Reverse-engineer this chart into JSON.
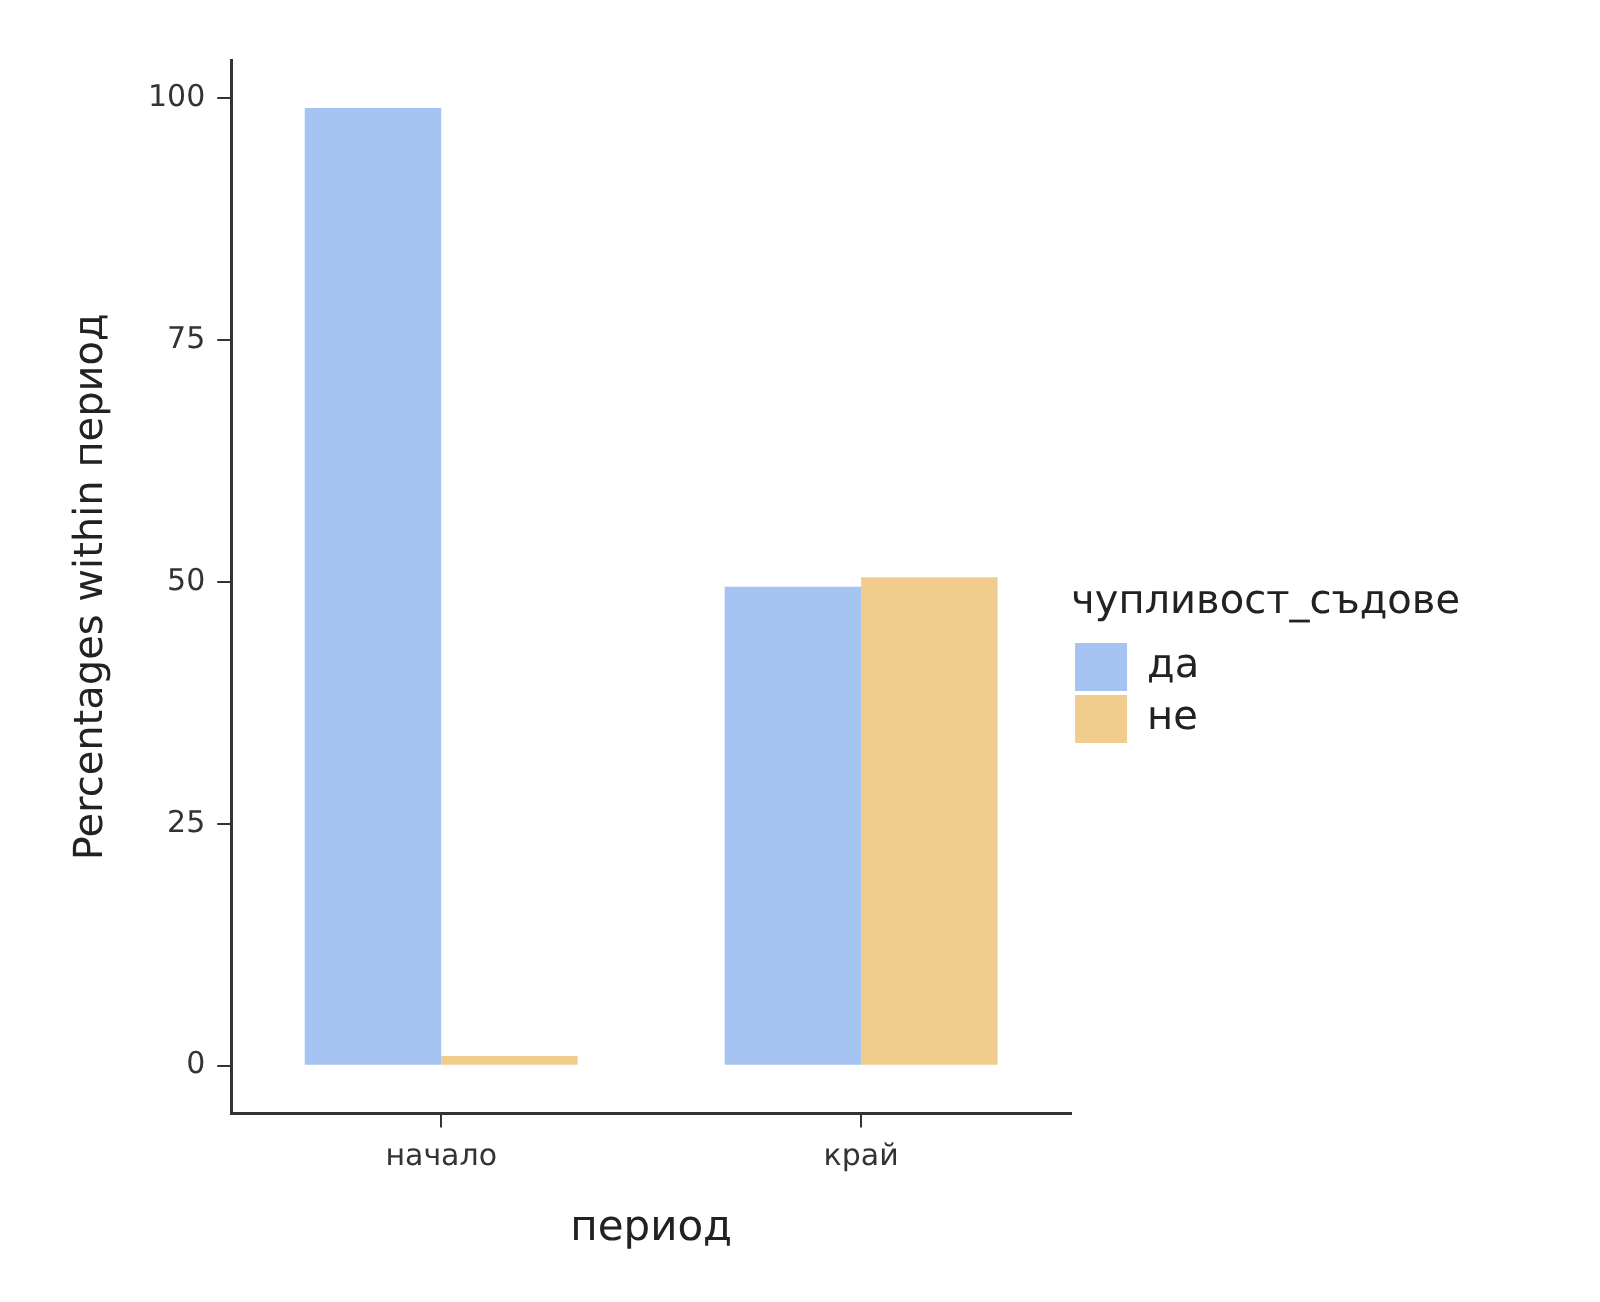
{
  "chart_data": {
    "type": "bar",
    "xlabel": "период",
    "ylabel": "Percentages within период",
    "legend_title": "чупливост_съдове",
    "categories": [
      "начало",
      "край"
    ],
    "series": [
      {
        "name": "да",
        "color": "#a6c4f2",
        "values": [
          99,
          49.5
        ]
      },
      {
        "name": "не",
        "color": "#f0cd8c",
        "values": [
          1,
          50.5
        ]
      }
    ],
    "ylim": [
      -4.95,
      103.95
    ],
    "yticks": [
      0,
      25,
      50,
      75,
      100
    ],
    "grid": false,
    "legend": "right"
  }
}
